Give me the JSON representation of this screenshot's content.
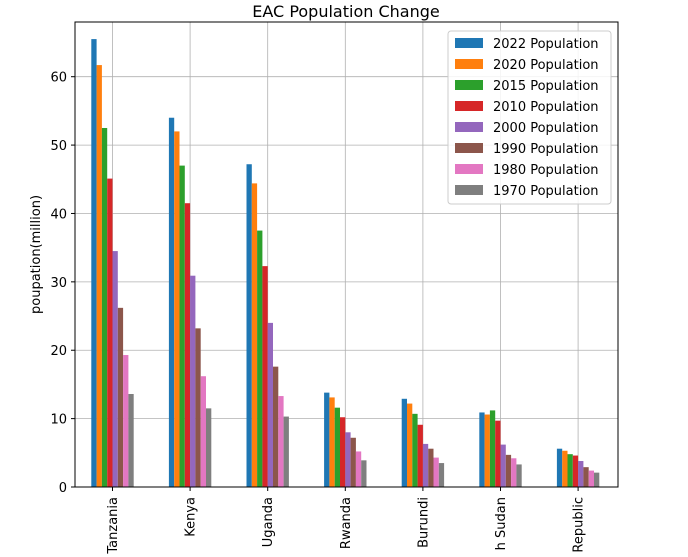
{
  "chart_data": {
    "type": "bar",
    "title": "EAC Population Change",
    "xlabel": "",
    "ylabel": "poupation(million)",
    "ylim": [
      0,
      68
    ],
    "yticks": [
      0,
      10,
      20,
      30,
      40,
      50,
      60
    ],
    "grid": true,
    "legend_position": "top-right",
    "categories": [
      "Tanzania",
      "Kenya",
      "Uganda",
      "Rwanda",
      "Burundi",
      "South Sudan",
      "Central African Republic"
    ],
    "tick_labels_visible": [
      "Tanzania",
      "Kenya",
      "Uganda",
      "Rwanda",
      "Burundi",
      "h Sudan",
      "Republic"
    ],
    "series": [
      {
        "name": "2022 Population",
        "color": "#1f77b4",
        "values": [
          65.5,
          54.0,
          47.2,
          13.8,
          12.9,
          10.9,
          5.6
        ]
      },
      {
        "name": "2020 Population",
        "color": "#ff7f0e",
        "values": [
          61.7,
          52.0,
          44.4,
          13.1,
          12.2,
          10.6,
          5.3
        ]
      },
      {
        "name": "2015 Population",
        "color": "#2ca02c",
        "values": [
          52.5,
          47.0,
          37.5,
          11.6,
          10.7,
          11.2,
          4.8
        ]
      },
      {
        "name": "2010 Population",
        "color": "#d62728",
        "values": [
          45.1,
          41.5,
          32.3,
          10.2,
          9.1,
          9.7,
          4.6
        ]
      },
      {
        "name": "2000 Population",
        "color": "#9467bd",
        "values": [
          34.5,
          30.9,
          24.0,
          8.0,
          6.3,
          6.2,
          3.8
        ]
      },
      {
        "name": "1990 Population",
        "color": "#8c564b",
        "values": [
          26.2,
          23.2,
          17.6,
          7.2,
          5.6,
          4.7,
          2.9
        ]
      },
      {
        "name": "1980 Population",
        "color": "#e377c2",
        "values": [
          19.3,
          16.2,
          13.3,
          5.2,
          4.3,
          4.2,
          2.4
        ]
      },
      {
        "name": "1970 Population",
        "color": "#7f7f7f",
        "values": [
          13.6,
          11.5,
          10.3,
          3.9,
          3.5,
          3.3,
          2.1
        ]
      }
    ]
  }
}
